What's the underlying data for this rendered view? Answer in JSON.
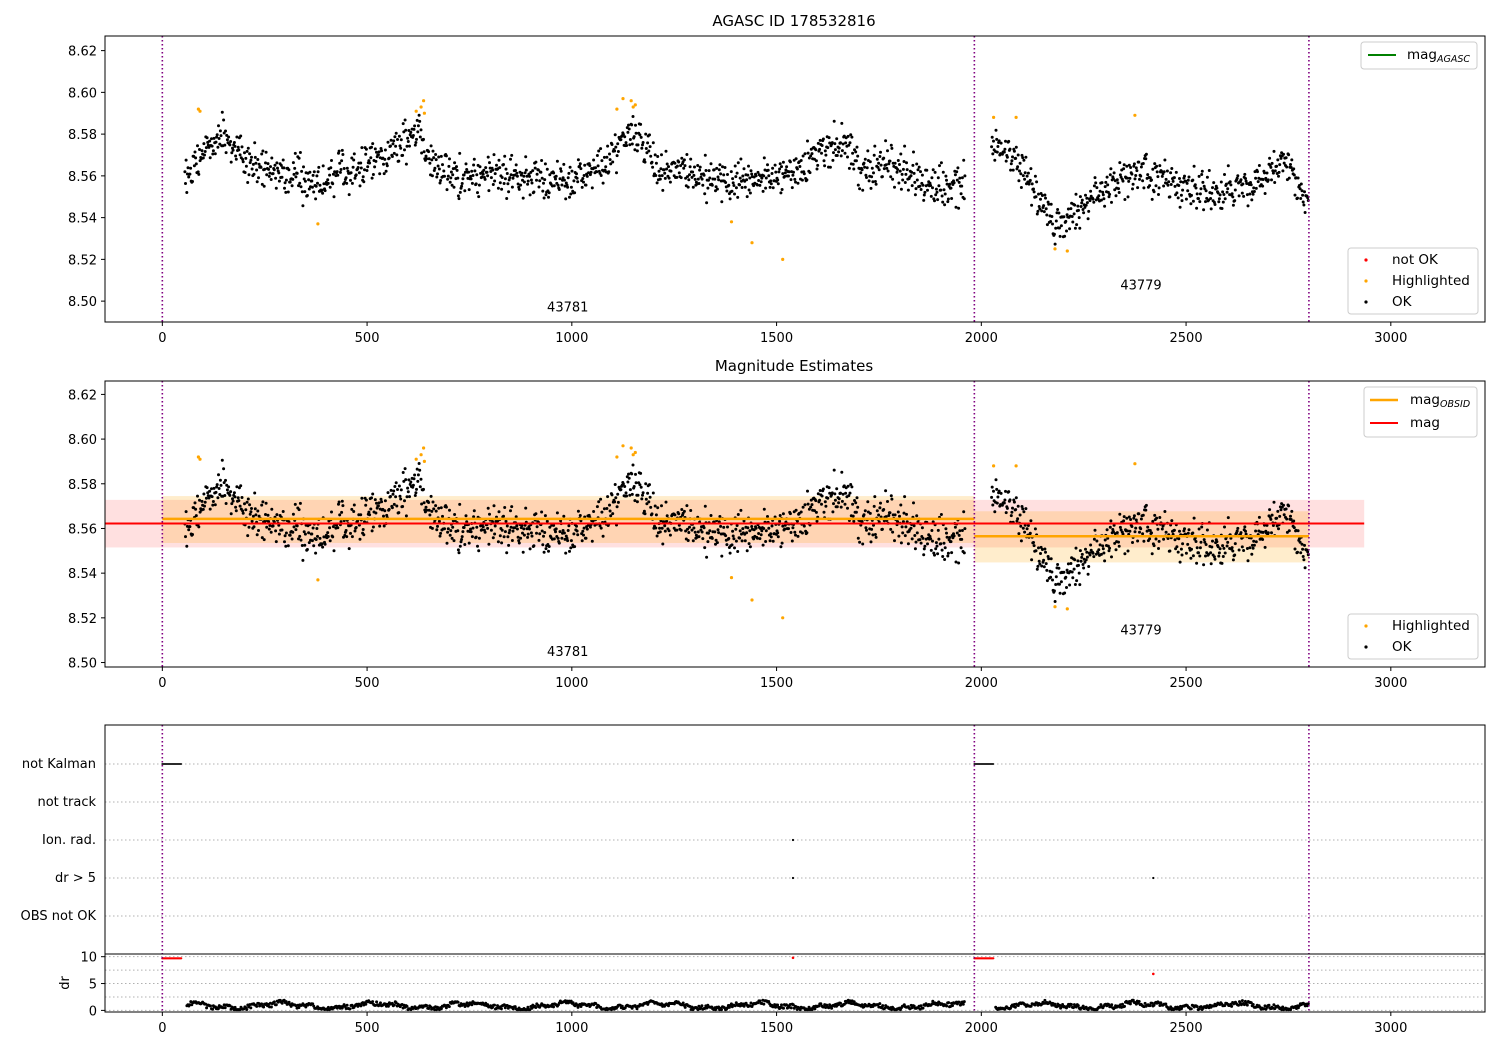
{
  "colors": {
    "ok": "#000000",
    "highlighted": "#ffa500",
    "not_ok": "#ff0000",
    "mag_agasc": "#008000",
    "mag_obsid": "#ffa500",
    "mag": "#ff0000",
    "obs_boundary": "#800080"
  },
  "chart_data": [
    {
      "type": "scatter",
      "title": "AGASC ID 178532816",
      "xlim": [
        -140,
        3230
      ],
      "ylim": [
        8.49,
        8.627
      ],
      "xticks": [
        0,
        500,
        1000,
        1500,
        2000,
        2500,
        3000
      ],
      "yticks": [
        8.5,
        8.52,
        8.54,
        8.56,
        8.58,
        8.6,
        8.62
      ],
      "obs_boundaries": [
        0,
        1983,
        2800
      ],
      "obs_labels": [
        {
          "text": "43781",
          "x": 990,
          "y": 8.495
        },
        {
          "text": "43779",
          "x": 2390,
          "y": 8.5055
        }
      ],
      "legend_lines": [
        {
          "label": "mag",
          "sub": "AGASC",
          "color": "#008000"
        }
      ],
      "legend_points": [
        {
          "label": "not OK",
          "color": "#ff0000"
        },
        {
          "label": "Highlighted",
          "color": "#ffa500"
        },
        {
          "label": "OK",
          "color": "#000000"
        }
      ],
      "highlighted_points": [
        [
          88,
          8.592
        ],
        [
          92,
          8.591
        ],
        [
          620,
          8.591
        ],
        [
          632,
          8.593
        ],
        [
          638,
          8.596
        ],
        [
          640,
          8.59
        ],
        [
          380,
          8.537
        ],
        [
          1110,
          8.592
        ],
        [
          1125,
          8.597
        ],
        [
          1145,
          8.596
        ],
        [
          1150,
          8.593
        ],
        [
          1155,
          8.594
        ],
        [
          1390,
          8.538
        ],
        [
          1440,
          8.528
        ],
        [
          1515,
          8.52
        ],
        [
          2030,
          8.588
        ],
        [
          2085,
          8.588
        ],
        [
          2180,
          8.525
        ],
        [
          2210,
          8.524
        ],
        [
          2375,
          8.589
        ]
      ]
    },
    {
      "type": "scatter",
      "title": "Magnitude Estimates",
      "xlim": [
        -140,
        3230
      ],
      "ylim": [
        8.498,
        8.626
      ],
      "xticks": [
        0,
        500,
        1000,
        1500,
        2000,
        2500,
        3000
      ],
      "yticks": [
        8.5,
        8.52,
        8.54,
        8.56,
        8.58,
        8.6,
        8.62
      ],
      "obs_boundaries": [
        0,
        1983,
        2800
      ],
      "obs_labels": [
        {
          "text": "43781",
          "x": 990,
          "y": 8.503
        },
        {
          "text": "43779",
          "x": 2390,
          "y": 8.5125
        }
      ],
      "mag": {
        "value": 8.5622,
        "band": [
          8.5515,
          8.5728
        ],
        "x_range": [
          -140,
          2935
        ]
      },
      "mag_obsid": [
        {
          "x_range": [
            0,
            1983
          ],
          "value": 8.5643,
          "band": [
            8.5535,
            8.5745
          ]
        },
        {
          "x_range": [
            1983,
            2800
          ],
          "value": 8.5565,
          "band": [
            8.5448,
            8.5677
          ]
        }
      ],
      "legend_lines": [
        {
          "label": "mag",
          "sub": "OBSID",
          "color": "#ffa500"
        },
        {
          "label": "mag",
          "sub": "",
          "color": "#ff0000"
        }
      ],
      "legend_points": [
        {
          "label": "Highlighted",
          "color": "#ffa500"
        },
        {
          "label": "OK",
          "color": "#000000"
        }
      ],
      "highlighted_points": [
        [
          88,
          8.592
        ],
        [
          92,
          8.591
        ],
        [
          620,
          8.591
        ],
        [
          632,
          8.593
        ],
        [
          638,
          8.596
        ],
        [
          640,
          8.59
        ],
        [
          380,
          8.537
        ],
        [
          1110,
          8.592
        ],
        [
          1125,
          8.597
        ],
        [
          1145,
          8.596
        ],
        [
          1150,
          8.593
        ],
        [
          1155,
          8.594
        ],
        [
          1390,
          8.538
        ],
        [
          1440,
          8.528
        ],
        [
          1515,
          8.52
        ],
        [
          2030,
          8.588
        ],
        [
          2085,
          8.588
        ],
        [
          2180,
          8.525
        ],
        [
          2210,
          8.524
        ],
        [
          2375,
          8.589
        ]
      ]
    },
    {
      "type": "scatter",
      "title": "",
      "xlim": [
        -140,
        3230
      ],
      "categories": [
        "not Kalman",
        "not track",
        "Ion. rad.",
        "dr > 5",
        "OBS not OK"
      ],
      "obs_boundaries": [
        0,
        1983,
        2800
      ],
      "flag_points": {
        "not Kalman": {
          "ranges": [
            [
              0,
              48
            ],
            [
              1983,
              2030
            ]
          ]
        },
        "not track": {
          "ranges": []
        },
        "Ion. rad.": {
          "points": [
            1540
          ]
        },
        "dr > 5": {
          "points": [
            1540,
            2420
          ]
        },
        "OBS not OK": {
          "ranges": []
        }
      }
    },
    {
      "type": "scatter",
      "title": "",
      "ylabel": "dr",
      "xlim": [
        -140,
        3230
      ],
      "ylim": [
        -0.3,
        10.5
      ],
      "xticks": [
        0,
        500,
        1000,
        1500,
        2000,
        2500,
        3000
      ],
      "yticks": [
        0,
        5,
        10
      ],
      "not_ok_points": [
        [
          1540,
          9.8
        ],
        [
          2420,
          6.8
        ]
      ],
      "not_ok_ranges": [
        [
          0,
          48,
          9.7
        ],
        [
          1983,
          2030,
          9.7
        ]
      ]
    }
  ]
}
